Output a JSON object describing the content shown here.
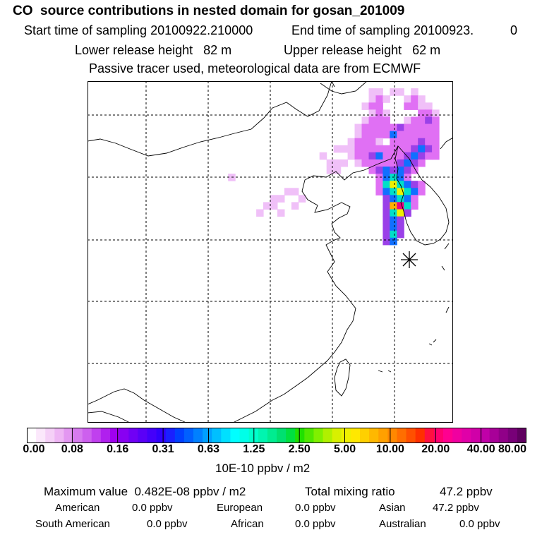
{
  "header": {
    "title": "CO  source contributions in nested domain for gosan_201009",
    "start_label": "Start time of sampling 20100922.210000",
    "end_label": "End time of sampling 20100923.",
    "end_value": "0",
    "lower_release": "Lower release height   82 m",
    "upper_release": "Upper release height   62 m",
    "tracer_note": "Passive tracer used, meteorological data are from ECMWF"
  },
  "colorbar": {
    "units": "10E-10 ppbv / m2",
    "tick_labels": [
      "0.00",
      "0.08",
      "0.16",
      "0.31",
      "0.63",
      "1.25",
      "2.50",
      "5.00",
      "10.00",
      "20.00",
      "40.00",
      "80.00"
    ],
    "colors": [
      "#ffffff",
      "#fbe8fb",
      "#f5d0f7",
      "#eeb5f4",
      "#e397f1",
      "#d77bef",
      "#cd60ee",
      "#c040ee",
      "#b020ee",
      "#a000f0",
      "#8800f2",
      "#7000f5",
      "#5a00f7",
      "#4400fa",
      "#3000fc",
      "#1a20ff",
      "#0040ff",
      "#0060ff",
      "#0080ff",
      "#00a0ff",
      "#00c0ff",
      "#00e0ff",
      "#00ffff",
      "#00ffe8",
      "#00ffcc",
      "#00f5b0",
      "#00ec90",
      "#00e070",
      "#00e040",
      "#20e000",
      "#50e800",
      "#80f000",
      "#b0f000",
      "#d8f000",
      "#f0f000",
      "#ffe800",
      "#ffd000",
      "#ffb800",
      "#ffa000",
      "#ff8800",
      "#ff6e00",
      "#ff5000",
      "#ff3000",
      "#ff1040",
      "#ff0070",
      "#ff0090",
      "#f000a0",
      "#e000a8",
      "#d000a8",
      "#c000a8",
      "#a80098",
      "#900088",
      "#780078",
      "#600060"
    ]
  },
  "stats": {
    "max_label": "Maximum value  0.482E-08 ppbv / m2",
    "total_label": "Total mixing ratio",
    "total_value": "47.2 ppbv",
    "regions": [
      {
        "name": "American",
        "value": "0.0 ppbv"
      },
      {
        "name": "European",
        "value": "0.0 ppbv"
      },
      {
        "name": "Asian",
        "value": "47.2 ppbv"
      },
      {
        "name": "South American",
        "value": "0.0 ppbv"
      },
      {
        "name": "African",
        "value": "0.0 ppbv"
      },
      {
        "name": "Australian",
        "value": "0.0 ppbv"
      }
    ]
  },
  "map": {
    "receptor_marker": "receptor-asterisk",
    "plume_cells": [
      {
        "col": 40,
        "row": 1,
        "level": 1
      },
      {
        "col": 41,
        "row": 1,
        "level": 1
      },
      {
        "col": 43,
        "row": 1,
        "level": 1
      },
      {
        "col": 44,
        "row": 1,
        "level": 1
      },
      {
        "col": 46,
        "row": 1,
        "level": 1
      },
      {
        "col": 40,
        "row": 2,
        "level": 1
      },
      {
        "col": 41,
        "row": 2,
        "level": 2
      },
      {
        "col": 42,
        "row": 2,
        "level": 1
      },
      {
        "col": 45,
        "row": 2,
        "level": 1
      },
      {
        "col": 46,
        "row": 2,
        "level": 2
      },
      {
        "col": 47,
        "row": 2,
        "level": 1
      },
      {
        "col": 39,
        "row": 3,
        "level": 1
      },
      {
        "col": 40,
        "row": 3,
        "level": 2
      },
      {
        "col": 41,
        "row": 3,
        "level": 2
      },
      {
        "col": 45,
        "row": 3,
        "level": 2
      },
      {
        "col": 46,
        "row": 3,
        "level": 2
      },
      {
        "col": 47,
        "row": 3,
        "level": 1
      },
      {
        "col": 48,
        "row": 3,
        "level": 1
      },
      {
        "col": 40,
        "row": 4,
        "level": 1
      },
      {
        "col": 41,
        "row": 4,
        "level": 2
      },
      {
        "col": 42,
        "row": 4,
        "level": 1
      },
      {
        "col": 47,
        "row": 4,
        "level": 2
      },
      {
        "col": 48,
        "row": 4,
        "level": 2
      },
      {
        "col": 49,
        "row": 4,
        "level": 1
      },
      {
        "col": 39,
        "row": 5,
        "level": 1
      },
      {
        "col": 40,
        "row": 5,
        "level": 2
      },
      {
        "col": 41,
        "row": 5,
        "level": 2
      },
      {
        "col": 42,
        "row": 5,
        "level": 2
      },
      {
        "col": 45,
        "row": 5,
        "level": 1
      },
      {
        "col": 46,
        "row": 5,
        "level": 2
      },
      {
        "col": 47,
        "row": 5,
        "level": 2
      },
      {
        "col": 48,
        "row": 5,
        "level": 3
      },
      {
        "col": 49,
        "row": 5,
        "level": 2
      },
      {
        "col": 38,
        "row": 6,
        "level": 1
      },
      {
        "col": 39,
        "row": 6,
        "level": 2
      },
      {
        "col": 40,
        "row": 6,
        "level": 2
      },
      {
        "col": 41,
        "row": 6,
        "level": 2
      },
      {
        "col": 42,
        "row": 6,
        "level": 2
      },
      {
        "col": 43,
        "row": 6,
        "level": 2
      },
      {
        "col": 44,
        "row": 6,
        "level": 3
      },
      {
        "col": 45,
        "row": 6,
        "level": 2
      },
      {
        "col": 46,
        "row": 6,
        "level": 2
      },
      {
        "col": 47,
        "row": 6,
        "level": 2
      },
      {
        "col": 48,
        "row": 6,
        "level": 2
      },
      {
        "col": 49,
        "row": 6,
        "level": 2
      },
      {
        "col": 38,
        "row": 7,
        "level": 1
      },
      {
        "col": 39,
        "row": 7,
        "level": 2
      },
      {
        "col": 40,
        "row": 7,
        "level": 2
      },
      {
        "col": 41,
        "row": 7,
        "level": 2
      },
      {
        "col": 42,
        "row": 7,
        "level": 2
      },
      {
        "col": 43,
        "row": 7,
        "level": 4
      },
      {
        "col": 44,
        "row": 7,
        "level": 2
      },
      {
        "col": 45,
        "row": 7,
        "level": 2
      },
      {
        "col": 46,
        "row": 7,
        "level": 2
      },
      {
        "col": 47,
        "row": 7,
        "level": 2
      },
      {
        "col": 48,
        "row": 7,
        "level": 2
      },
      {
        "col": 49,
        "row": 7,
        "level": 2
      },
      {
        "col": 37,
        "row": 8,
        "level": 1
      },
      {
        "col": 38,
        "row": 8,
        "level": 2
      },
      {
        "col": 39,
        "row": 8,
        "level": 2
      },
      {
        "col": 40,
        "row": 8,
        "level": 2
      },
      {
        "col": 41,
        "row": 8,
        "level": 1
      },
      {
        "col": 43,
        "row": 8,
        "level": 2
      },
      {
        "col": 44,
        "row": 8,
        "level": 2
      },
      {
        "col": 45,
        "row": 8,
        "level": 2
      },
      {
        "col": 46,
        "row": 8,
        "level": 2
      },
      {
        "col": 47,
        "row": 8,
        "level": 3
      },
      {
        "col": 48,
        "row": 8,
        "level": 2
      },
      {
        "col": 49,
        "row": 8,
        "level": 2
      },
      {
        "col": 35,
        "row": 9,
        "level": 1
      },
      {
        "col": 36,
        "row": 9,
        "level": 1
      },
      {
        "col": 37,
        "row": 9,
        "level": 1
      },
      {
        "col": 38,
        "row": 9,
        "level": 2
      },
      {
        "col": 39,
        "row": 9,
        "level": 2
      },
      {
        "col": 40,
        "row": 9,
        "level": 2
      },
      {
        "col": 41,
        "row": 9,
        "level": 2
      },
      {
        "col": 42,
        "row": 9,
        "level": 2
      },
      {
        "col": 43,
        "row": 9,
        "level": 2
      },
      {
        "col": 44,
        "row": 9,
        "level": 2
      },
      {
        "col": 45,
        "row": 9,
        "level": 2
      },
      {
        "col": 46,
        "row": 9,
        "level": 3
      },
      {
        "col": 47,
        "row": 9,
        "level": 4
      },
      {
        "col": 48,
        "row": 9,
        "level": 3
      },
      {
        "col": 49,
        "row": 9,
        "level": 2
      },
      {
        "col": 37,
        "row": 10,
        "level": 1
      },
      {
        "col": 38,
        "row": 10,
        "level": 2
      },
      {
        "col": 39,
        "row": 10,
        "level": 2
      },
      {
        "col": 40,
        "row": 10,
        "level": 3
      },
      {
        "col": 41,
        "row": 10,
        "level": 4
      },
      {
        "col": 42,
        "row": 10,
        "level": 2
      },
      {
        "col": 43,
        "row": 10,
        "level": 2
      },
      {
        "col": 44,
        "row": 10,
        "level": 2
      },
      {
        "col": 45,
        "row": 10,
        "level": 3
      },
      {
        "col": 46,
        "row": 10,
        "level": 4
      },
      {
        "col": 47,
        "row": 10,
        "level": 3
      },
      {
        "col": 48,
        "row": 10,
        "level": 2
      },
      {
        "col": 49,
        "row": 10,
        "level": 2
      },
      {
        "col": 35,
        "row": 11,
        "level": 1
      },
      {
        "col": 36,
        "row": 11,
        "level": 1
      },
      {
        "col": 38,
        "row": 11,
        "level": 1
      },
      {
        "col": 39,
        "row": 11,
        "level": 2
      },
      {
        "col": 40,
        "row": 11,
        "level": 2
      },
      {
        "col": 41,
        "row": 11,
        "level": 2
      },
      {
        "col": 42,
        "row": 11,
        "level": 2
      },
      {
        "col": 43,
        "row": 11,
        "level": 2
      },
      {
        "col": 44,
        "row": 11,
        "level": 3
      },
      {
        "col": 45,
        "row": 11,
        "level": 4
      },
      {
        "col": 46,
        "row": 11,
        "level": 3
      },
      {
        "col": 47,
        "row": 11,
        "level": 2
      },
      {
        "col": 34,
        "row": 12,
        "level": 1
      },
      {
        "col": 35,
        "row": 12,
        "level": 1
      },
      {
        "col": 40,
        "row": 12,
        "level": 2
      },
      {
        "col": 41,
        "row": 12,
        "level": 3
      },
      {
        "col": 42,
        "row": 12,
        "level": 4
      },
      {
        "col": 43,
        "row": 12,
        "level": 3
      },
      {
        "col": 44,
        "row": 12,
        "level": 4
      },
      {
        "col": 45,
        "row": 12,
        "level": 3
      },
      {
        "col": 46,
        "row": 12,
        "level": 2
      },
      {
        "col": 41,
        "row": 13,
        "level": 2
      },
      {
        "col": 42,
        "row": 13,
        "level": 4
      },
      {
        "col": 43,
        "row": 13,
        "level": 5
      },
      {
        "col": 44,
        "row": 13,
        "level": 4
      },
      {
        "col": 45,
        "row": 13,
        "level": 2
      },
      {
        "col": 41,
        "row": 14,
        "level": 2
      },
      {
        "col": 42,
        "row": 14,
        "level": 5
      },
      {
        "col": 43,
        "row": 14,
        "level": 6
      },
      {
        "col": 44,
        "row": 14,
        "level": 5
      },
      {
        "col": 45,
        "row": 14,
        "level": 4
      },
      {
        "col": 46,
        "row": 14,
        "level": 3
      },
      {
        "col": 47,
        "row": 14,
        "level": 2
      },
      {
        "col": 41,
        "row": 15,
        "level": 2
      },
      {
        "col": 42,
        "row": 15,
        "level": 4
      },
      {
        "col": 43,
        "row": 15,
        "level": 5
      },
      {
        "col": 44,
        "row": 15,
        "level": 6
      },
      {
        "col": 45,
        "row": 15,
        "level": 5
      },
      {
        "col": 46,
        "row": 15,
        "level": 4
      },
      {
        "col": 47,
        "row": 15,
        "level": 2
      },
      {
        "col": 42,
        "row": 16,
        "level": 3
      },
      {
        "col": 43,
        "row": 16,
        "level": 4
      },
      {
        "col": 44,
        "row": 16,
        "level": 5
      },
      {
        "col": 45,
        "row": 16,
        "level": 4
      },
      {
        "col": 46,
        "row": 16,
        "level": 2
      },
      {
        "col": 42,
        "row": 17,
        "level": 3
      },
      {
        "col": 43,
        "row": 17,
        "level": 7
      },
      {
        "col": 44,
        "row": 17,
        "level": 8
      },
      {
        "col": 45,
        "row": 17,
        "level": 5
      },
      {
        "col": 46,
        "row": 17,
        "level": 2
      },
      {
        "col": 42,
        "row": 18,
        "level": 3
      },
      {
        "col": 43,
        "row": 18,
        "level": 5
      },
      {
        "col": 44,
        "row": 18,
        "level": 6
      },
      {
        "col": 45,
        "row": 18,
        "level": 3
      },
      {
        "col": 42,
        "row": 19,
        "level": 3
      },
      {
        "col": 43,
        "row": 19,
        "level": 4
      },
      {
        "col": 44,
        "row": 19,
        "level": 3
      },
      {
        "col": 42,
        "row": 20,
        "level": 3
      },
      {
        "col": 43,
        "row": 20,
        "level": 4
      },
      {
        "col": 44,
        "row": 20,
        "level": 3
      },
      {
        "col": 42,
        "row": 21,
        "level": 3
      },
      {
        "col": 43,
        "row": 21,
        "level": 5
      },
      {
        "col": 44,
        "row": 21,
        "level": 3
      },
      {
        "col": 42,
        "row": 22,
        "level": 3
      },
      {
        "col": 43,
        "row": 22,
        "level": 4
      },
      {
        "col": 28,
        "row": 15,
        "level": 1
      },
      {
        "col": 29,
        "row": 15,
        "level": 1
      },
      {
        "col": 30,
        "row": 16,
        "level": 1
      },
      {
        "col": 26,
        "row": 16,
        "level": 1
      },
      {
        "col": 27,
        "row": 16,
        "level": 1
      },
      {
        "col": 25,
        "row": 17,
        "level": 1
      },
      {
        "col": 26,
        "row": 17,
        "level": 1
      },
      {
        "col": 29,
        "row": 17,
        "level": 1
      },
      {
        "col": 24,
        "row": 18,
        "level": 1
      },
      {
        "col": 27,
        "row": 18,
        "level": 1
      },
      {
        "col": 33,
        "row": 10,
        "level": 1
      },
      {
        "col": 34,
        "row": 11,
        "level": 1
      },
      {
        "col": 20,
        "row": 13,
        "level": 1
      }
    ],
    "level_colors": [
      "#ffffff",
      "#f0c0f8",
      "#e070f4",
      "#9a40e8",
      "#1070ff",
      "#00e0c8",
      "#f0f000",
      "#ffb000",
      "#f00080"
    ]
  }
}
